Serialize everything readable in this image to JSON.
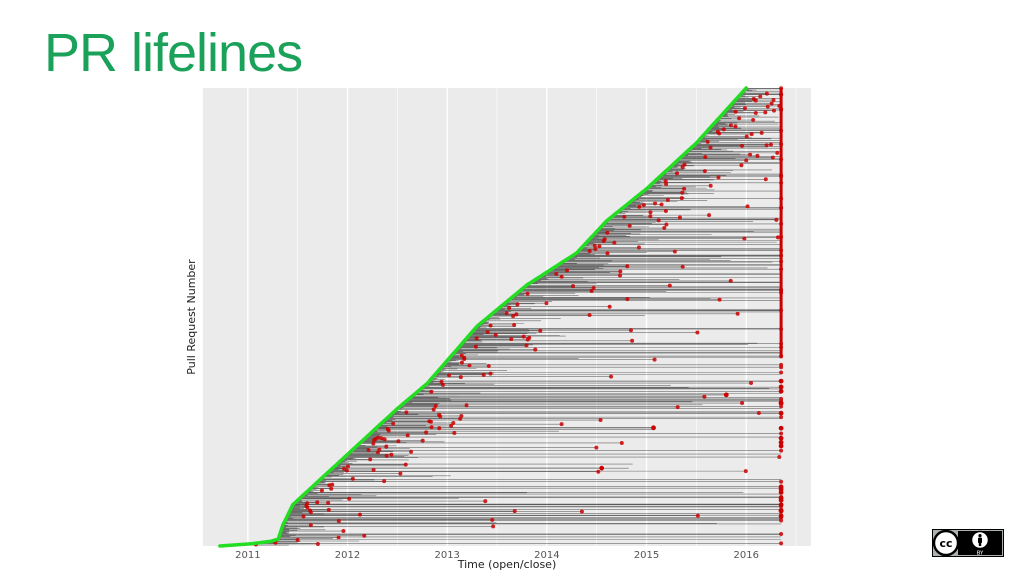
{
  "slide": {
    "title": "PR lifelines"
  },
  "chart_data": {
    "type": "scatter",
    "title": "",
    "xlabel": "Time (open/close)",
    "ylabel": "Pull Request Number",
    "x_ticks": [
      2011,
      2012,
      2013,
      2014,
      2015,
      2016
    ],
    "xlim": [
      2010.55,
      2016.65
    ],
    "ylim": [
      0,
      1
    ],
    "y_tick_labels": false,
    "grid": true,
    "legend": "none",
    "background_color": "#ebebeb",
    "open_curve_color": "#22dd22",
    "lifeline_color": "#000000",
    "close_point_color": "#cc0000",
    "open_curve": {
      "x": [
        2010.72,
        2011.0,
        2011.3,
        2011.35,
        2011.45,
        2011.8,
        2012.2,
        2012.5,
        2012.8,
        2013.3,
        2013.8,
        2014.3,
        2014.6,
        2015.0,
        2015.5,
        2016.0
      ],
      "y": [
        0.0,
        0.004,
        0.012,
        0.045,
        0.09,
        0.16,
        0.24,
        0.3,
        0.355,
        0.48,
        0.57,
        0.64,
        0.71,
        0.78,
        0.88,
        1.0
      ]
    },
    "data_end_x": 2016.35,
    "sample_close_points": [
      {
        "x": 2016.35,
        "y": 0.09
      },
      {
        "x": 2014.55,
        "y": 0.17
      },
      {
        "x": 2015.07,
        "y": 0.258
      },
      {
        "x": 2016.35,
        "y": 0.29
      },
      {
        "x": 2016.35,
        "y": 0.36
      },
      {
        "x": 2015.8,
        "y": 0.33
      }
    ]
  },
  "license": {
    "cc": "cc",
    "by": "BY",
    "icons": [
      "cc-icon",
      "by-person-icon"
    ]
  }
}
